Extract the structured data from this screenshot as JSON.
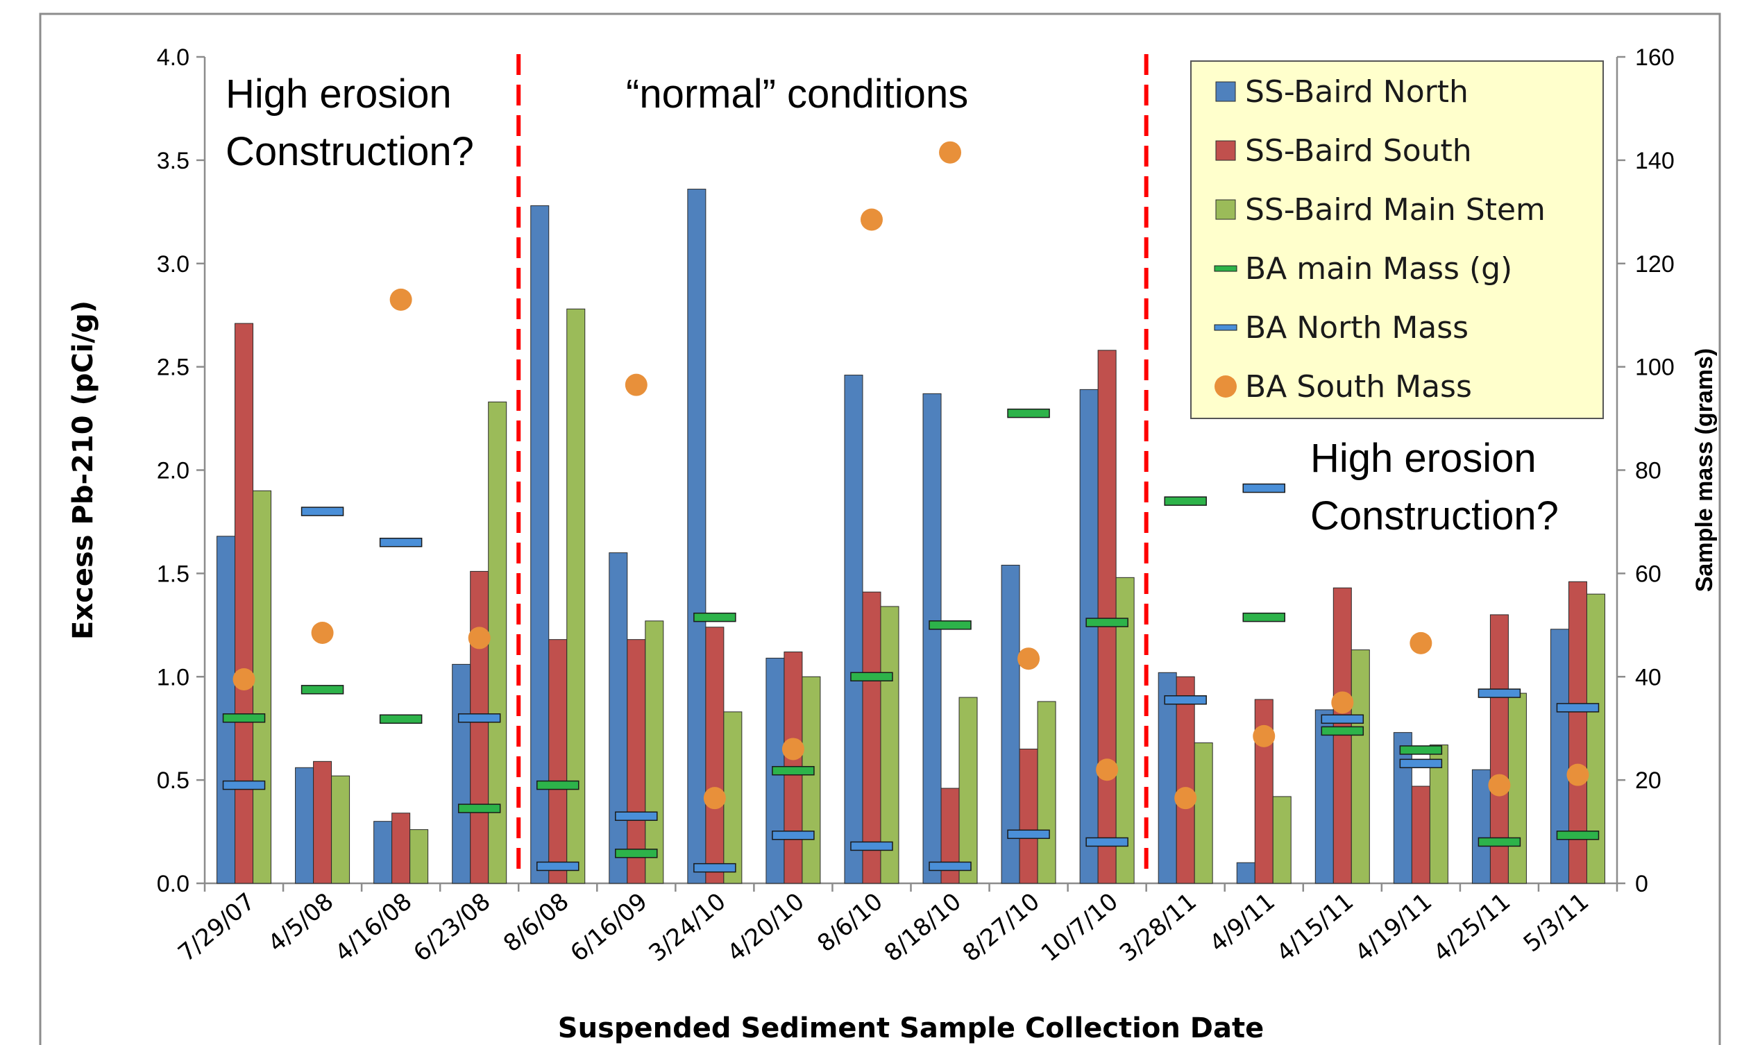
{
  "chart_data": {
    "type": "bar",
    "xlabel": "Suspended Sediment Sample Collection Date",
    "ylabel": "Excess Pb-210 (pCi/g)",
    "y2label": "Sample mass (grams)",
    "ylim": [
      0,
      4.0
    ],
    "y2lim": [
      0,
      160
    ],
    "yticks": [
      "0.0",
      "0.5",
      "1.0",
      "1.5",
      "2.0",
      "2.5",
      "3.0",
      "3.5",
      "4.0"
    ],
    "y2ticks": [
      "0",
      "20",
      "40",
      "60",
      "80",
      "100",
      "120",
      "140",
      "160"
    ],
    "grid": false,
    "legend_position": "top-right",
    "categories": [
      "7/29/07",
      "4/5/08",
      "4/16/08",
      "6/23/08",
      "8/6/08",
      "6/16/09",
      "3/24/10",
      "4/20/10",
      "8/6/10",
      "8/18/10",
      "8/27/10",
      "10/7/10",
      "3/28/11",
      "4/9/11",
      "4/15/11",
      "4/19/11",
      "4/25/11",
      "5/3/11"
    ],
    "series": [
      {
        "name": "SS-Baird North",
        "kind": "bar",
        "axis": "left",
        "color": "#4F81BD",
        "values": [
          1.68,
          0.56,
          0.3,
          1.06,
          3.28,
          1.6,
          3.36,
          1.09,
          2.46,
          2.37,
          1.54,
          2.39,
          1.02,
          0.1,
          0.84,
          0.73,
          0.55,
          1.23
        ]
      },
      {
        "name": "SS-Baird South",
        "kind": "bar",
        "axis": "left",
        "color": "#C0504D",
        "values": [
          2.71,
          0.59,
          0.34,
          1.51,
          1.18,
          1.18,
          1.24,
          1.12,
          1.41,
          0.46,
          0.65,
          2.58,
          1.0,
          0.89,
          1.43,
          0.47,
          1.3,
          1.46
        ]
      },
      {
        "name": "SS-Baird Main Stem",
        "kind": "bar",
        "axis": "left",
        "color": "#9BBB59",
        "values": [
          1.9,
          0.52,
          0.26,
          2.33,
          2.78,
          1.27,
          0.83,
          1.0,
          1.34,
          0.9,
          0.88,
          1.48,
          0.68,
          0.42,
          1.13,
          0.67,
          0.92,
          1.4
        ]
      },
      {
        "name": "BA main Mass (g)",
        "kind": "dash",
        "axis": "right",
        "color": "#2DB34A",
        "values": [
          32,
          37.5,
          31.8,
          14.5,
          19,
          5.8,
          51.5,
          21.8,
          40,
          50,
          91,
          50.5,
          74,
          51.5,
          29.5,
          25.8,
          8,
          9.3
        ]
      },
      {
        "name": "BA North Mass",
        "kind": "dash",
        "axis": "right",
        "color": "#4A8FD8",
        "values": [
          19,
          72,
          66,
          32,
          3.3,
          13,
          3,
          9.3,
          7.2,
          3.3,
          9.5,
          8,
          35.5,
          76.5,
          31.8,
          23.2,
          36.8,
          34
        ]
      },
      {
        "name": "BA South Mass",
        "kind": "dot",
        "axis": "right",
        "color": "#E8903A",
        "values": [
          39.5,
          48.5,
          113,
          47.5,
          null,
          96.5,
          16.5,
          26,
          128.5,
          141.5,
          43.5,
          22,
          16.5,
          28.5,
          35,
          46.5,
          19,
          21
        ]
      }
    ],
    "annotations": [
      {
        "lines": [
          "High erosion",
          "Construction?"
        ]
      },
      {
        "lines": [
          "“normal” conditions"
        ]
      },
      {
        "lines": [
          "High erosion",
          "Construction?"
        ]
      }
    ],
    "dividers_after_category": [
      "6/23/08",
      "10/7/10"
    ]
  }
}
